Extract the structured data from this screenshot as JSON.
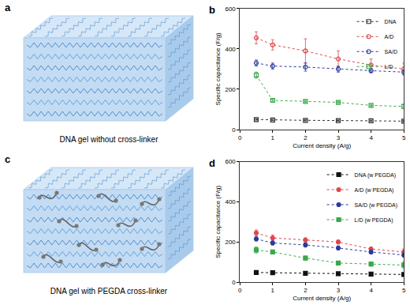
{
  "illustrations": [
    {
      "label": "a",
      "caption": "DNA gel without cross-linker"
    },
    {
      "label": "c",
      "caption": "DNA gel with PEGDA cross-linker"
    }
  ],
  "chart_data": [
    {
      "type": "scatter",
      "annotations": [
        "b"
      ],
      "x": [
        0.5,
        1,
        2,
        3,
        4,
        5
      ],
      "xlabel": "Current density (A/g)",
      "ylabel": "Specific capacitance (F/g)",
      "xlim": [
        0,
        5
      ],
      "xticks": [
        0,
        1,
        2,
        3,
        4,
        5
      ],
      "ylim": [
        0,
        600
      ],
      "yticks": [
        0,
        200,
        400,
        600
      ],
      "grid": false,
      "legend": "upper right",
      "series": [
        {
          "name": "DNA",
          "color": "#333333",
          "marker": "open-square",
          "line_style": "dotted",
          "values": [
            50,
            48,
            46,
            45,
            44,
            42
          ],
          "errors": [
            3,
            3,
            3,
            3,
            3,
            3
          ]
        },
        {
          "name": "A/D",
          "color": "#e0474c",
          "marker": "open-circle",
          "line_style": "dotted",
          "values": [
            455,
            420,
            390,
            350,
            320,
            300
          ],
          "errors": [
            30,
            25,
            60,
            40,
            30,
            30
          ]
        },
        {
          "name": "SA/D",
          "color": "#2b3a9e",
          "marker": "open-circle",
          "line_style": "dotted",
          "values": [
            330,
            315,
            310,
            300,
            292,
            285
          ],
          "errors": [
            15,
            15,
            20,
            15,
            10,
            10
          ]
        },
        {
          "name": "L/D",
          "color": "#3aa84a",
          "marker": "open-square",
          "line_style": "dotted",
          "values": [
            270,
            145,
            140,
            135,
            120,
            115
          ],
          "errors": [
            15,
            5,
            5,
            5,
            5,
            10
          ]
        }
      ]
    },
    {
      "type": "scatter",
      "annotations": [
        "d"
      ],
      "x": [
        0.5,
        1,
        2,
        3,
        4,
        5
      ],
      "xlabel": "Current density (A/g)",
      "ylabel": "Specific capacitance (F/g)",
      "xlim": [
        0,
        5
      ],
      "xticks": [
        0,
        1,
        2,
        3,
        4,
        5
      ],
      "ylim": [
        0,
        600
      ],
      "yticks": [
        0,
        200,
        400,
        600
      ],
      "grid": false,
      "legend": "upper right",
      "series": [
        {
          "name": "DNA (w PEGDA)",
          "color": "#111111",
          "marker": "square",
          "line_style": "dotted",
          "values": [
            48,
            47,
            44,
            42,
            40,
            38
          ],
          "errors": [
            3,
            3,
            3,
            3,
            3,
            3
          ]
        },
        {
          "name": "A/D (w PEGDA)",
          "color": "#e0474c",
          "marker": "circle",
          "line_style": "dotted",
          "values": [
            245,
            220,
            210,
            200,
            165,
            150
          ],
          "errors": [
            15,
            15,
            10,
            10,
            10,
            15
          ]
        },
        {
          "name": "SA/D (w PEGDA)",
          "color": "#2b3a9e",
          "marker": "circle",
          "line_style": "dotted",
          "values": [
            215,
            195,
            185,
            170,
            150,
            135
          ],
          "errors": [
            10,
            10,
            10,
            10,
            10,
            10
          ]
        },
        {
          "name": "L/D (w PEGDA)",
          "color": "#3aa84a",
          "marker": "square",
          "line_style": "dotted",
          "values": [
            160,
            150,
            120,
            95,
            90,
            85
          ],
          "errors": [
            15,
            10,
            10,
            5,
            10,
            15
          ]
        }
      ]
    }
  ]
}
